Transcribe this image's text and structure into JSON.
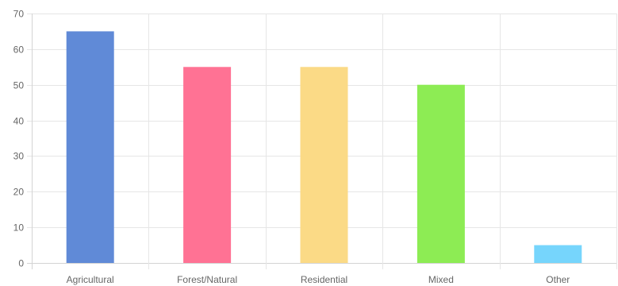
{
  "chart_data": {
    "type": "bar",
    "title": "",
    "xlabel": "",
    "ylabel": "",
    "categories": [
      "Agricultural",
      "Forest/Natural",
      "Residential",
      "Mixed",
      "Other"
    ],
    "values": [
      65,
      55,
      55,
      50,
      5
    ],
    "colors": [
      "#5b86d6",
      "#ff6d91",
      "#fbd982",
      "#89eb4e",
      "#72d4fc"
    ],
    "ylim": [
      0,
      70
    ],
    "yticks": [
      0,
      10,
      20,
      30,
      40,
      50,
      60,
      70
    ],
    "grid": true,
    "legend": "none"
  }
}
